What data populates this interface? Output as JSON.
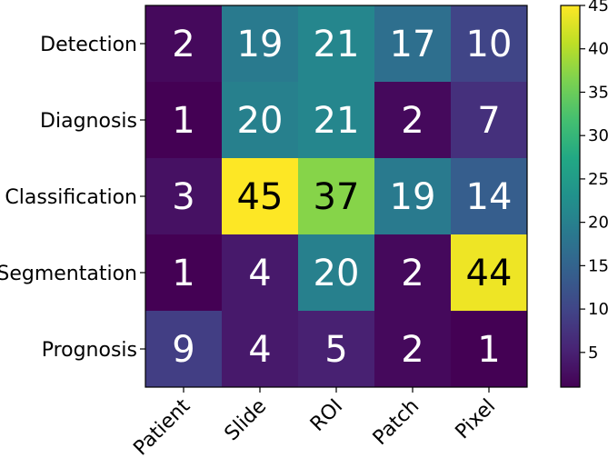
{
  "chart_data": {
    "type": "heatmap",
    "title": "",
    "xlabel": "",
    "ylabel": "",
    "rows": [
      "Detection",
      "Diagnosis",
      "Classification",
      "Segmentation",
      "Prognosis"
    ],
    "columns": [
      "Patient",
      "Slide",
      "ROI",
      "Patch",
      "Pixel"
    ],
    "values": [
      [
        2,
        19,
        21,
        17,
        10
      ],
      [
        1,
        20,
        21,
        2,
        7
      ],
      [
        3,
        45,
        37,
        19,
        14
      ],
      [
        1,
        4,
        20,
        2,
        44
      ],
      [
        9,
        4,
        5,
        2,
        1
      ]
    ],
    "colormap": "viridis",
    "color_range": [
      1,
      45
    ],
    "colorbar": {
      "position": "right",
      "ticks": [
        5,
        10,
        15,
        20,
        25,
        30,
        35,
        40,
        45
      ]
    },
    "grid": false,
    "x_tick_rotation_deg": 45
  }
}
